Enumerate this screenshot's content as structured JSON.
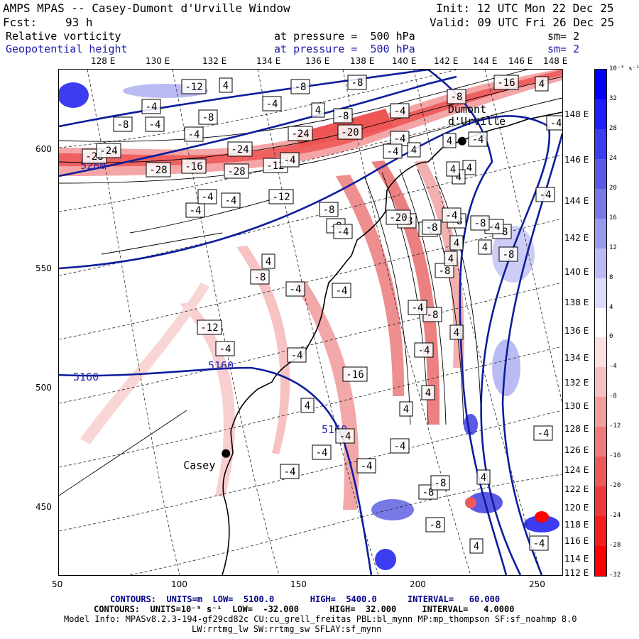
{
  "header": {
    "title": "AMPS MPAS -- Casey-Dumont d'Urville Window",
    "init": "Init: 12 UTC Mon 22 Dec 25",
    "fcst_label": "Fcst:",
    "fcst_value": "93 h",
    "valid": "Valid: 09 UTC Fri 26 Dec 25",
    "field1": "Relative vorticity",
    "field1_level": "at pressure =  500 hPa",
    "field1_sm": "sm= 2",
    "field2": "Geopotential height",
    "field2_level": "at pressure =  500 hPa",
    "field2_sm": "sm= 2"
  },
  "footer": {
    "line1": "CONTOURS:  UNITS=m  LOW=  5100.0       HIGH=  5400.0      INTERVAL=   60.000",
    "line2": "CONTOURS:  UNITS=10⁻⁵ s⁻¹  LOW=  -32.000      HIGH=  32.000     INTERVAL=   4.0000",
    "line3": "Model Info: MPASv8.2.3-194-gf29cd82c CU:cu_grell_freitas PBL:bl_mynn MP:mp_thompson SF:sf_noahmp 8.0",
    "line4": "LW:rrtmg_lw SW:rrtmg_sw SFLAY:sf_mynn"
  },
  "stations": [
    {
      "name": "Casey",
      "x": 120,
      "y": 473
    },
    {
      "name": "Dumont\nd'Urville",
      "x": 219,
      "y": 604
    }
  ],
  "chart_data": {
    "type": "heatmap",
    "title": "Relative vorticity and Geopotential height at 500 hPa",
    "x_ticks": [
      50,
      100,
      150,
      200,
      250
    ],
    "y_ticks": [
      450,
      500,
      550,
      600
    ],
    "xlim": [
      50,
      261
    ],
    "ylim": [
      422,
      634
    ],
    "lon_labels_top": [
      "128 E",
      "130 E",
      "132 E",
      "134 E",
      "136 E",
      "138 E",
      "140 E",
      "142 E",
      "144 E",
      "146 E",
      "148 E"
    ],
    "lon_labels_right": [
      "148 E",
      "146 E",
      "144 E",
      "142 E",
      "140 E",
      "138 E",
      "136 E",
      "134 E",
      "132 E",
      "130 E",
      "128 E",
      "126 E",
      "124 E",
      "122 E",
      "120 E",
      "118 E",
      "116 E",
      "114 E",
      "112 E"
    ],
    "colorbar": {
      "unit": "10⁻⁵ s⁻¹",
      "labels": [
        "32",
        "28",
        "24",
        "20",
        "16",
        "12",
        "8",
        "4",
        "0",
        "-4",
        "-8",
        "-12",
        "-16",
        "-20",
        "-24",
        "-28",
        "-32"
      ],
      "colors": [
        "#0000ff",
        "#1e1eff",
        "#3c3cf0",
        "#5a5ae6",
        "#7878e6",
        "#9999ee",
        "#bbbbf4",
        "#ddddfa",
        "#ffffff",
        "#fbe0e0",
        "#f7c0c0",
        "#f29e9e",
        "#ee7c7c",
        "#ea5a5a",
        "#ee3a3a",
        "#f51d1d",
        "#ff0000"
      ]
    },
    "height_contour_labels": [
      "5280",
      "5160",
      "5160",
      "5160"
    ],
    "vorticity_labels": [
      "-12",
      "4",
      "-8",
      "-8",
      "-4",
      "-4",
      "4",
      "-8",
      "-4",
      "-8",
      "-16",
      "-8",
      "-4",
      "-4",
      "-8",
      "-24",
      "-20",
      "-28",
      "-24",
      "-28",
      "-16",
      "-24",
      "-28",
      "-12",
      "-4",
      "-4",
      "-4",
      "-4",
      "-12",
      "-8",
      "-8",
      "-4",
      "-4",
      "-4",
      "4",
      "4",
      "-4",
      "-4",
      "-4",
      "-8",
      "-4",
      "4",
      "4",
      "4",
      "-8",
      "-4",
      "-8",
      "4",
      "-4",
      "-8",
      "-12",
      "-4",
      "-8",
      "-8",
      "-8",
      "4",
      "4",
      "-8",
      "-4",
      "-4",
      "-4",
      "-4",
      "-16",
      "4",
      "4",
      "-4",
      "-4",
      "-4",
      "-4",
      "-8",
      "-4",
      "4",
      "-4",
      "-8",
      "4",
      "4",
      "4",
      "-8",
      "-4",
      "4",
      "4",
      "-8",
      "-20",
      "-8"
    ]
  }
}
